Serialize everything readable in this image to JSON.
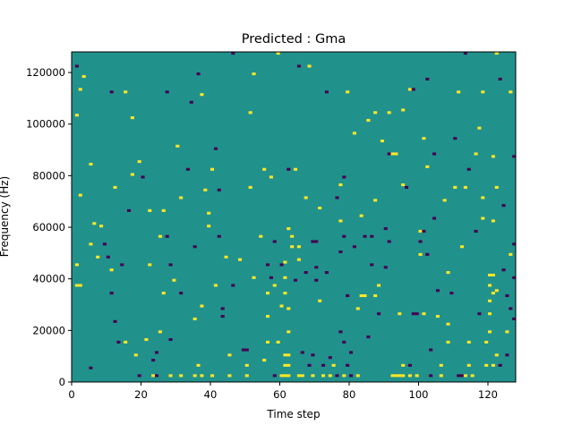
{
  "chart_data": {
    "type": "heatmap",
    "title": "Predicted : Gma",
    "xlabel": "Time step",
    "ylabel": "Frequency (Hz)",
    "xlim": [
      0,
      128
    ],
    "ylim": [
      0,
      128000
    ],
    "x_ticks": [
      0,
      20,
      40,
      60,
      80,
      100,
      120
    ],
    "y_ticks": [
      0,
      20000,
      40000,
      60000,
      80000,
      100000,
      120000
    ],
    "x_tick_labels": [
      "0",
      "20",
      "40",
      "60",
      "80",
      "100",
      "120"
    ],
    "y_tick_labels": [
      "0",
      "20000",
      "40000",
      "60000",
      "80000",
      "100000",
      "120000"
    ],
    "grid": false,
    "legend": "none",
    "background_value": 0,
    "colors": {
      "background": "#21918c",
      "low": "#440154",
      "high": "#fde725"
    },
    "cells": [
      {
        "t": 1,
        "f": 122000,
        "v": -1
      },
      {
        "t": 2,
        "f": 113000,
        "v": 1
      },
      {
        "t": 3,
        "f": 118000,
        "v": 1
      },
      {
        "t": 1,
        "f": 103000,
        "v": 1
      },
      {
        "t": 2,
        "f": 72000,
        "v": 1
      },
      {
        "t": 1,
        "f": 45000,
        "v": 1
      },
      {
        "t": 1,
        "f": 37000,
        "v": 1
      },
      {
        "t": 2,
        "f": 37000,
        "v": 1
      },
      {
        "t": 5,
        "f": 5000,
        "v": -1
      },
      {
        "t": 5,
        "f": 53000,
        "v": 1
      },
      {
        "t": 5,
        "f": 84000,
        "v": 1
      },
      {
        "t": 6,
        "f": 61000,
        "v": 1
      },
      {
        "t": 7,
        "f": 48000,
        "v": 1
      },
      {
        "t": 8,
        "f": 60000,
        "v": 1
      },
      {
        "t": 9,
        "f": 53000,
        "v": -1
      },
      {
        "t": 10,
        "f": 48000,
        "v": -1
      },
      {
        "t": 11,
        "f": 43000,
        "v": 1
      },
      {
        "t": 11,
        "f": 112000,
        "v": -1
      },
      {
        "t": 11,
        "f": 34000,
        "v": -1
      },
      {
        "t": 12,
        "f": 23000,
        "v": -1
      },
      {
        "t": 12,
        "f": 75000,
        "v": 1
      },
      {
        "t": 13,
        "f": 15000,
        "v": -1
      },
      {
        "t": 14,
        "f": 45000,
        "v": -1
      },
      {
        "t": 15,
        "f": 15000,
        "v": 1
      },
      {
        "t": 15,
        "f": 112000,
        "v": 1
      },
      {
        "t": 16,
        "f": 66000,
        "v": -1
      },
      {
        "t": 17,
        "f": 102000,
        "v": 1
      },
      {
        "t": 17,
        "f": 80000,
        "v": 1
      },
      {
        "t": 18,
        "f": 10000,
        "v": 1
      },
      {
        "t": 19,
        "f": 2000,
        "v": -1
      },
      {
        "t": 19,
        "f": 85000,
        "v": 1
      },
      {
        "t": 20,
        "f": 79000,
        "v": -1
      },
      {
        "t": 21,
        "f": 16000,
        "v": 1
      },
      {
        "t": 22,
        "f": 45000,
        "v": 1
      },
      {
        "t": 22,
        "f": 66000,
        "v": 1
      },
      {
        "t": 23,
        "f": 8000,
        "v": -1
      },
      {
        "t": 23,
        "f": 2000,
        "v": 1
      },
      {
        "t": 24,
        "f": 2000,
        "v": -1
      },
      {
        "t": 24,
        "f": 11000,
        "v": -1
      },
      {
        "t": 25,
        "f": 56000,
        "v": 1
      },
      {
        "t": 25,
        "f": 19000,
        "v": 1
      },
      {
        "t": 26,
        "f": 34000,
        "v": 1
      },
      {
        "t": 26,
        "f": 66000,
        "v": 1
      },
      {
        "t": 27,
        "f": 112000,
        "v": -1
      },
      {
        "t": 27,
        "f": 56000,
        "v": -1
      },
      {
        "t": 28,
        "f": 45000,
        "v": -1
      },
      {
        "t": 28,
        "f": 2000,
        "v": 1
      },
      {
        "t": 28,
        "f": 16000,
        "v": -1
      },
      {
        "t": 29,
        "f": 39000,
        "v": 1
      },
      {
        "t": 30,
        "f": 91000,
        "v": 1
      },
      {
        "t": 31,
        "f": 2000,
        "v": 1
      },
      {
        "t": 31,
        "f": 71000,
        "v": 1
      },
      {
        "t": 31,
        "f": 34000,
        "v": -1
      },
      {
        "t": 33,
        "f": 82000,
        "v": -1
      },
      {
        "t": 34,
        "f": 108000,
        "v": -1
      },
      {
        "t": 35,
        "f": 24000,
        "v": 1
      },
      {
        "t": 35,
        "f": 52000,
        "v": -1
      },
      {
        "t": 35,
        "f": 2000,
        "v": 1
      },
      {
        "t": 36,
        "f": 119000,
        "v": -1
      },
      {
        "t": 36,
        "f": 6000,
        "v": 1
      },
      {
        "t": 37,
        "f": 111000,
        "v": 1
      },
      {
        "t": 37,
        "f": 29000,
        "v": 1
      },
      {
        "t": 37,
        "f": 2000,
        "v": 1
      },
      {
        "t": 38,
        "f": 74000,
        "v": 1
      },
      {
        "t": 39,
        "f": 65000,
        "v": 1
      },
      {
        "t": 39,
        "f": 60000,
        "v": 1
      },
      {
        "t": 40,
        "f": 82000,
        "v": 1
      },
      {
        "t": 40,
        "f": 2000,
        "v": 1
      },
      {
        "t": 41,
        "f": 37000,
        "v": 1
      },
      {
        "t": 41,
        "f": 90000,
        "v": -1
      },
      {
        "t": 42,
        "f": 56000,
        "v": -1
      },
      {
        "t": 42,
        "f": 74000,
        "v": -1
      },
      {
        "t": 43,
        "f": 28000,
        "v": -1
      },
      {
        "t": 43,
        "f": 25000,
        "v": -1
      },
      {
        "t": 44,
        "f": 48000,
        "v": 1
      },
      {
        "t": 45,
        "f": 10000,
        "v": 1
      },
      {
        "t": 45,
        "f": 2000,
        "v": 1
      },
      {
        "t": 46,
        "f": 127000,
        "v": -1
      },
      {
        "t": 46,
        "f": 37000,
        "v": -1
      },
      {
        "t": 48,
        "f": 47000,
        "v": 1
      },
      {
        "t": 49,
        "f": 12000,
        "v": -1
      },
      {
        "t": 50,
        "f": 12000,
        "v": -1
      },
      {
        "t": 50,
        "f": 6000,
        "v": 1
      },
      {
        "t": 50,
        "f": 2000,
        "v": 1
      },
      {
        "t": 51,
        "f": 104000,
        "v": 1
      },
      {
        "t": 51,
        "f": 75000,
        "v": 1
      },
      {
        "t": 52,
        "f": 119000,
        "v": 1
      },
      {
        "t": 52,
        "f": 40000,
        "v": 1
      },
      {
        "t": 54,
        "f": 56000,
        "v": 1
      },
      {
        "t": 55,
        "f": 8000,
        "v": 1
      },
      {
        "t": 55,
        "f": 82000,
        "v": 1
      },
      {
        "t": 56,
        "f": 45000,
        "v": -1
      },
      {
        "t": 56,
        "f": 34000,
        "v": 1
      },
      {
        "t": 56,
        "f": 25000,
        "v": 1
      },
      {
        "t": 56,
        "f": 15000,
        "v": 1
      },
      {
        "t": 57,
        "f": 40000,
        "v": -1
      },
      {
        "t": 57,
        "f": 79000,
        "v": 1
      },
      {
        "t": 58,
        "f": 54000,
        "v": -1
      },
      {
        "t": 58,
        "f": 37000,
        "v": 1
      },
      {
        "t": 58,
        "f": 2000,
        "v": -1
      },
      {
        "t": 59,
        "f": 127000,
        "v": 1
      },
      {
        "t": 59,
        "f": 15000,
        "v": 1
      },
      {
        "t": 60,
        "f": 29000,
        "v": 1
      },
      {
        "t": 60,
        "f": 45000,
        "v": -1
      },
      {
        "t": 60,
        "f": 2000,
        "v": 1
      },
      {
        "t": 61,
        "f": 2000,
        "v": 1
      },
      {
        "t": 61,
        "f": 6000,
        "v": 1
      },
      {
        "t": 61,
        "f": 10000,
        "v": 1
      },
      {
        "t": 61,
        "f": 46000,
        "v": 1
      },
      {
        "t": 61,
        "f": 40000,
        "v": 1
      },
      {
        "t": 61,
        "f": 34000,
        "v": 1
      },
      {
        "t": 62,
        "f": 2000,
        "v": 1
      },
      {
        "t": 62,
        "f": 6000,
        "v": 1
      },
      {
        "t": 62,
        "f": 10000,
        "v": 1
      },
      {
        "t": 62,
        "f": 28000,
        "v": 1
      },
      {
        "t": 62,
        "f": 19000,
        "v": 1
      },
      {
        "t": 62,
        "f": 59000,
        "v": 1
      },
      {
        "t": 62,
        "f": 82000,
        "v": -1
      },
      {
        "t": 63,
        "f": 56000,
        "v": 1
      },
      {
        "t": 63,
        "f": 52000,
        "v": 1
      },
      {
        "t": 64,
        "f": 82000,
        "v": 1
      },
      {
        "t": 64,
        "f": 39000,
        "v": -1
      },
      {
        "t": 65,
        "f": 122000,
        "v": -1
      },
      {
        "t": 65,
        "f": 2000,
        "v": 1
      },
      {
        "t": 65,
        "f": 52000,
        "v": 1
      },
      {
        "t": 65,
        "f": 47000,
        "v": 1
      },
      {
        "t": 66,
        "f": 2000,
        "v": 1
      },
      {
        "t": 66,
        "f": 11000,
        "v": -1
      },
      {
        "t": 67,
        "f": 71000,
        "v": 1
      },
      {
        "t": 67,
        "f": 42000,
        "v": -1
      },
      {
        "t": 68,
        "f": 122000,
        "v": 1
      },
      {
        "t": 68,
        "f": 6000,
        "v": -1
      },
      {
        "t": 69,
        "f": 54000,
        "v": -1
      },
      {
        "t": 69,
        "f": 2000,
        "v": 1
      },
      {
        "t": 69,
        "f": 10000,
        "v": -1
      },
      {
        "t": 70,
        "f": 44000,
        "v": -1
      },
      {
        "t": 70,
        "f": 54000,
        "v": -1
      },
      {
        "t": 70,
        "f": 39000,
        "v": -1
      },
      {
        "t": 71,
        "f": 67000,
        "v": 1
      },
      {
        "t": 71,
        "f": 31000,
        "v": 1
      },
      {
        "t": 72,
        "f": 2000,
        "v": 1
      },
      {
        "t": 72,
        "f": 6000,
        "v": -1
      },
      {
        "t": 73,
        "f": 112000,
        "v": -1
      },
      {
        "t": 73,
        "f": 42000,
        "v": -1
      },
      {
        "t": 74,
        "f": 2000,
        "v": 1
      },
      {
        "t": 74,
        "f": 9000,
        "v": -1
      },
      {
        "t": 75,
        "f": 6000,
        "v": 1
      },
      {
        "t": 76,
        "f": 2000,
        "v": -1
      },
      {
        "t": 76,
        "f": 71000,
        "v": -1
      },
      {
        "t": 77,
        "f": 76000,
        "v": 1
      },
      {
        "t": 77,
        "f": 62000,
        "v": 1
      },
      {
        "t": 77,
        "f": 50000,
        "v": -1
      },
      {
        "t": 77,
        "f": 19000,
        "v": -1
      },
      {
        "t": 78,
        "f": 79000,
        "v": -1
      },
      {
        "t": 78,
        "f": 56000,
        "v": -1
      },
      {
        "t": 78,
        "f": 15000,
        "v": -1
      },
      {
        "t": 78,
        "f": 2000,
        "v": 1
      },
      {
        "t": 79,
        "f": 112000,
        "v": 1
      },
      {
        "t": 79,
        "f": 6000,
        "v": -1
      },
      {
        "t": 79,
        "f": 33000,
        "v": -1
      },
      {
        "t": 80,
        "f": 11000,
        "v": -1
      },
      {
        "t": 80,
        "f": 2000,
        "v": -1
      },
      {
        "t": 81,
        "f": 96000,
        "v": 1
      },
      {
        "t": 81,
        "f": 52000,
        "v": -1
      },
      {
        "t": 82,
        "f": 28000,
        "v": 1
      },
      {
        "t": 82,
        "f": 2000,
        "v": 1
      },
      {
        "t": 83,
        "f": 64000,
        "v": 1
      },
      {
        "t": 83,
        "f": 33000,
        "v": 1
      },
      {
        "t": 84,
        "f": 56000,
        "v": -1
      },
      {
        "t": 84,
        "f": 33000,
        "v": 1
      },
      {
        "t": 85,
        "f": 101000,
        "v": 1
      },
      {
        "t": 85,
        "f": 17000,
        "v": -1
      },
      {
        "t": 86,
        "f": 56000,
        "v": -1
      },
      {
        "t": 86,
        "f": 45000,
        "v": -1
      },
      {
        "t": 87,
        "f": 104000,
        "v": 1
      },
      {
        "t": 87,
        "f": 70000,
        "v": 1
      },
      {
        "t": 87,
        "f": 33000,
        "v": 1
      },
      {
        "t": 88,
        "f": 37000,
        "v": 1
      },
      {
        "t": 88,
        "f": 26000,
        "v": -1
      },
      {
        "t": 89,
        "f": 93000,
        "v": 1
      },
      {
        "t": 90,
        "f": 59000,
        "v": -1
      },
      {
        "t": 90,
        "f": 44000,
        "v": -1
      },
      {
        "t": 91,
        "f": 104000,
        "v": 1
      },
      {
        "t": 91,
        "f": 88000,
        "v": -1
      },
      {
        "t": 91,
        "f": 54000,
        "v": -1
      },
      {
        "t": 92,
        "f": 88000,
        "v": 1
      },
      {
        "t": 92,
        "f": 2000,
        "v": 1
      },
      {
        "t": 93,
        "f": 88000,
        "v": 1
      },
      {
        "t": 93,
        "f": 2000,
        "v": 1
      },
      {
        "t": 94,
        "f": 26000,
        "v": 1
      },
      {
        "t": 94,
        "f": 2000,
        "v": 1
      },
      {
        "t": 95,
        "f": 105000,
        "v": 1
      },
      {
        "t": 95,
        "f": 76000,
        "v": 1
      },
      {
        "t": 95,
        "f": 2000,
        "v": 1
      },
      {
        "t": 95,
        "f": 6000,
        "v": 1
      },
      {
        "t": 96,
        "f": 75000,
        "v": -1
      },
      {
        "t": 97,
        "f": 113000,
        "v": 1
      },
      {
        "t": 97,
        "f": 6000,
        "v": -1
      },
      {
        "t": 97,
        "f": 2000,
        "v": 1
      },
      {
        "t": 98,
        "f": 113000,
        "v": -1
      },
      {
        "t": 98,
        "f": 26000,
        "v": -1
      },
      {
        "t": 99,
        "f": 26000,
        "v": -1
      },
      {
        "t": 99,
        "f": 2000,
        "v": 1
      },
      {
        "t": 100,
        "f": 54000,
        "v": -1
      },
      {
        "t": 100,
        "f": 58000,
        "v": 1
      },
      {
        "t": 100,
        "f": 49000,
        "v": 1
      },
      {
        "t": 101,
        "f": 94000,
        "v": 1
      },
      {
        "t": 101,
        "f": 58000,
        "v": -1
      },
      {
        "t": 101,
        "f": 26000,
        "v": 1
      },
      {
        "t": 102,
        "f": 117000,
        "v": -1
      },
      {
        "t": 102,
        "f": 83000,
        "v": 1
      },
      {
        "t": 102,
        "f": 49000,
        "v": -1
      },
      {
        "t": 103,
        "f": 2000,
        "v": -1
      },
      {
        "t": 103,
        "f": 12000,
        "v": -1
      },
      {
        "t": 104,
        "f": 88000,
        "v": -1
      },
      {
        "t": 104,
        "f": 63000,
        "v": -1
      },
      {
        "t": 105,
        "f": 35000,
        "v": -1
      },
      {
        "t": 105,
        "f": 25000,
        "v": 1
      },
      {
        "t": 106,
        "f": 6000,
        "v": 1
      },
      {
        "t": 106,
        "f": 2000,
        "v": 1
      },
      {
        "t": 107,
        "f": 70000,
        "v": 1
      },
      {
        "t": 108,
        "f": 15000,
        "v": 1
      },
      {
        "t": 108,
        "f": 22000,
        "v": 1
      },
      {
        "t": 108,
        "f": 42000,
        "v": 1
      },
      {
        "t": 109,
        "f": 34000,
        "v": -1
      },
      {
        "t": 110,
        "f": 94000,
        "v": -1
      },
      {
        "t": 110,
        "f": 75000,
        "v": 1
      },
      {
        "t": 111,
        "f": 112000,
        "v": 1
      },
      {
        "t": 111,
        "f": 2000,
        "v": -1
      },
      {
        "t": 112,
        "f": 2000,
        "v": -1
      },
      {
        "t": 112,
        "f": 52000,
        "v": 1
      },
      {
        "t": 113,
        "f": 127000,
        "v": -1
      },
      {
        "t": 113,
        "f": 75000,
        "v": 1
      },
      {
        "t": 113,
        "f": 2000,
        "v": 1
      },
      {
        "t": 114,
        "f": 82000,
        "v": -1
      },
      {
        "t": 114,
        "f": 6000,
        "v": 1
      },
      {
        "t": 114,
        "f": 15000,
        "v": 1
      },
      {
        "t": 115,
        "f": 2000,
        "v": 1
      },
      {
        "t": 116,
        "f": 88000,
        "v": 1
      },
      {
        "t": 116,
        "f": 58000,
        "v": -1
      },
      {
        "t": 117,
        "f": 98000,
        "v": 1
      },
      {
        "t": 117,
        "f": 26000,
        "v": -1
      },
      {
        "t": 118,
        "f": 112000,
        "v": 1
      },
      {
        "t": 118,
        "f": 71000,
        "v": 1
      },
      {
        "t": 118,
        "f": 63000,
        "v": 1
      },
      {
        "t": 119,
        "f": 6000,
        "v": 1
      },
      {
        "t": 119,
        "f": 15000,
        "v": 1
      },
      {
        "t": 120,
        "f": 41000,
        "v": 1
      },
      {
        "t": 120,
        "f": 37000,
        "v": 1
      },
      {
        "t": 120,
        "f": 31000,
        "v": 1
      },
      {
        "t": 120,
        "f": 26000,
        "v": 1
      },
      {
        "t": 120,
        "f": 19000,
        "v": 1
      },
      {
        "t": 121,
        "f": 41000,
        "v": 1
      },
      {
        "t": 121,
        "f": 34000,
        "v": 1
      },
      {
        "t": 121,
        "f": 6000,
        "v": 1
      },
      {
        "t": 121,
        "f": 62000,
        "v": 1
      },
      {
        "t": 121,
        "f": 87000,
        "v": 1
      },
      {
        "t": 122,
        "f": 127000,
        "v": 1
      },
      {
        "t": 122,
        "f": 75000,
        "v": 1
      },
      {
        "t": 122,
        "f": 35000,
        "v": 1
      },
      {
        "t": 122,
        "f": 10000,
        "v": 1
      },
      {
        "t": 123,
        "f": 117000,
        "v": -1
      },
      {
        "t": 123,
        "f": 6000,
        "v": -1
      },
      {
        "t": 124,
        "f": 68000,
        "v": -1
      },
      {
        "t": 124,
        "f": 43000,
        "v": -1
      },
      {
        "t": 125,
        "f": 33000,
        "v": -1
      },
      {
        "t": 125,
        "f": 19000,
        "v": 1
      },
      {
        "t": 125,
        "f": 10000,
        "v": -1
      },
      {
        "t": 126,
        "f": 49000,
        "v": 1
      },
      {
        "t": 126,
        "f": 112000,
        "v": 1
      },
      {
        "t": 126,
        "f": 28000,
        "v": -1
      },
      {
        "t": 127,
        "f": 87000,
        "v": -1
      },
      {
        "t": 127,
        "f": 40000,
        "v": -1
      },
      {
        "t": 127,
        "f": 53000,
        "v": -1
      },
      {
        "t": 127,
        "f": 24000,
        "v": -1
      }
    ]
  }
}
